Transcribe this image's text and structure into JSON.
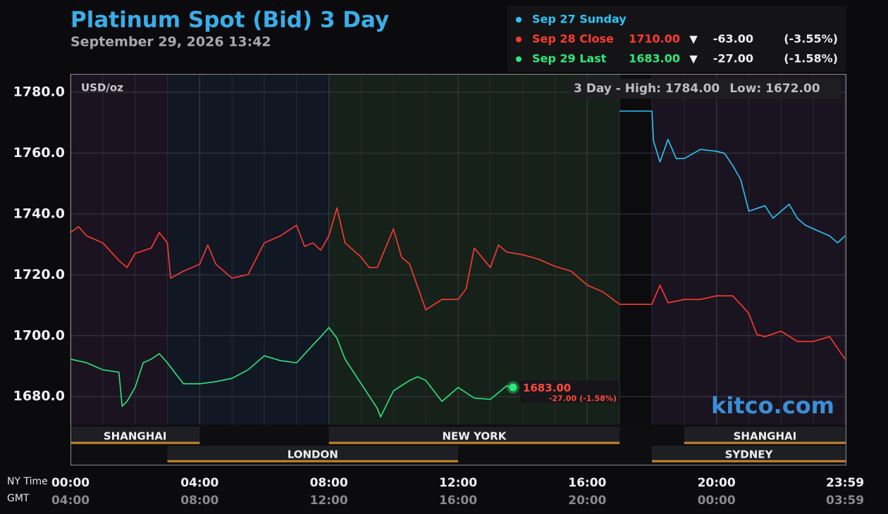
{
  "chart_data": {
    "type": "line",
    "title": "Platinum Spot (Bid) 3 Day",
    "subtitle": "September 29, 2026 13:42",
    "unit_label": "USD/oz",
    "high_label": "3 Day - High:",
    "high": {
      "value": 1784,
      "label": "1784.00"
    },
    "low_label": "Low:",
    "low": {
      "value": 1672,
      "label": "1672.00"
    },
    "watermark": "kitco.com",
    "x_axis_label": "NY Time",
    "x2_axis_label": "GMT",
    "xlim": [
      0,
      24
    ],
    "xticks": [
      {
        "value": 0,
        "label": "00:00"
      },
      {
        "value": 4,
        "label": "04:00"
      },
      {
        "value": 8,
        "label": "08:00"
      },
      {
        "value": 12,
        "label": "12:00"
      },
      {
        "value": 16,
        "label": "16:00"
      },
      {
        "value": 20,
        "label": "20:00"
      },
      {
        "value": 23.98,
        "label": "23:59"
      }
    ],
    "xticks_gmt": [
      "04:00",
      "08:00",
      "12:00",
      "16:00",
      "20:00",
      "00:00",
      "03:59"
    ],
    "xgrid_step": 1,
    "ylim": [
      1670.8,
      1786
    ],
    "yticks": [
      {
        "value": 1680,
        "label": "1680.0"
      },
      {
        "value": 1700,
        "label": "1700.0"
      },
      {
        "value": 1720,
        "label": "1720.0"
      },
      {
        "value": 1740,
        "label": "1740.0"
      },
      {
        "value": 1760,
        "label": "1760.0"
      },
      {
        "value": 1780,
        "label": "1780.0"
      }
    ],
    "grid": true,
    "sessions": {
      "upper": [
        {
          "name": "SHANGHAI",
          "start": 0,
          "end": 4
        },
        {
          "name": "NEW YORK",
          "start": 8,
          "end": 17
        },
        {
          "name": "SHANGHAI",
          "start": 19,
          "end": 24
        }
      ],
      "lower": [
        {
          "name": "LONDON",
          "start": 3,
          "end": 12
        },
        {
          "name": "SYDNEY",
          "start": 18,
          "end": 24
        }
      ]
    },
    "series": [
      {
        "name": "Sep 27 Sunday",
        "color": "#2ec4f5",
        "x": [
          17,
          18,
          18.05,
          18.25,
          18.5,
          18.75,
          19,
          19.5,
          20,
          20.25,
          20.5,
          20.75,
          21,
          21.5,
          21.75,
          22,
          22.25,
          22.5,
          22.75,
          23,
          23.5,
          23.75,
          23.98
        ],
        "values": [
          1773.8,
          1773.8,
          1764,
          1757.1,
          1764.5,
          1758.2,
          1758.2,
          1761.2,
          1760.6,
          1759.9,
          1755.9,
          1751.3,
          1740.9,
          1742.7,
          1738.6,
          1740.9,
          1743.2,
          1738.6,
          1736.3,
          1735.1,
          1732.8,
          1730.5,
          1732.8
        ]
      },
      {
        "name": "Sep 28 Close",
        "color": "#ff3b30",
        "price": {
          "value": 1710,
          "label": "1710.00"
        },
        "arrow": "▼",
        "change": {
          "value": -63,
          "label": "-63.00"
        },
        "change_pct": {
          "value": -3.55,
          "label": "(-3.55%)"
        },
        "x": [
          0,
          0.25,
          0.5,
          1,
          1.5,
          1.75,
          2,
          2.5,
          2.75,
          3,
          3.1,
          3.5,
          4,
          4.25,
          4.5,
          5,
          5.5,
          6,
          6.5,
          7,
          7.25,
          7.5,
          7.75,
          8,
          8.25,
          8.5,
          9,
          9.25,
          9.5,
          10,
          10.25,
          10.5,
          11,
          11.5,
          12,
          12.25,
          12.5,
          13,
          13.25,
          13.5,
          14,
          14.5,
          15,
          15.5,
          16,
          16.5,
          17,
          18,
          18.25,
          18.5,
          19,
          19.5,
          20,
          20.5,
          20.75,
          21,
          21.25,
          21.5,
          22,
          22.5,
          23,
          23.5,
          23.98
        ],
        "values": [
          1733.9,
          1735.8,
          1732.8,
          1730.5,
          1724.7,
          1722.4,
          1727,
          1728.8,
          1733.9,
          1730.5,
          1718.9,
          1721.2,
          1723.5,
          1729.8,
          1723.5,
          1718.9,
          1720.1,
          1730.5,
          1732.8,
          1736.3,
          1729.3,
          1730.5,
          1728.1,
          1732.8,
          1742,
          1730.5,
          1725.8,
          1722.4,
          1722.4,
          1735.1,
          1725.8,
          1723.5,
          1708.5,
          1711.9,
          1711.9,
          1715.4,
          1728.8,
          1722.4,
          1729.8,
          1727.5,
          1726.6,
          1725.1,
          1722.8,
          1721.2,
          1716.6,
          1714.3,
          1710.3,
          1710.3,
          1716.6,
          1710.8,
          1711.9,
          1711.9,
          1713.1,
          1713.1,
          1710.3,
          1707.3,
          1700.4,
          1699.7,
          1701.5,
          1698.1,
          1698.1,
          1699.7,
          1692.3
        ]
      },
      {
        "name": "Sep 29 Last",
        "color": "#2ee87a",
        "price": {
          "value": 1683,
          "label": "1683.00"
        },
        "arrow": "▼",
        "change": {
          "value": -27,
          "label": "-27.00"
        },
        "change_pct": {
          "value": -1.58,
          "label": "(-1.58%)"
        },
        "x": [
          0,
          0.5,
          1,
          1.5,
          1.6,
          1.75,
          2,
          2.25,
          2.5,
          2.75,
          3,
          3.25,
          3.5,
          4,
          4.5,
          5,
          5.5,
          6,
          6.5,
          7,
          7.5,
          7.75,
          8,
          8.25,
          8.5,
          9,
          9.5,
          9.6,
          10,
          10.5,
          10.75,
          11,
          11.5,
          12,
          12.5,
          13,
          13.5,
          13.7
        ],
        "values": [
          1692.3,
          1691.1,
          1688.8,
          1688,
          1676.8,
          1678.4,
          1683,
          1691.1,
          1692.3,
          1694.1,
          1691.1,
          1687.6,
          1684.2,
          1684.2,
          1684.9,
          1686,
          1688.8,
          1693.4,
          1691.8,
          1691.1,
          1696.9,
          1699.7,
          1702.7,
          1699.2,
          1692.3,
          1684.2,
          1676.1,
          1673.3,
          1681.9,
          1685.3,
          1686.5,
          1685.3,
          1678.4,
          1683,
          1679.5,
          1679.1,
          1683.5,
          1683
        ]
      }
    ]
  }
}
